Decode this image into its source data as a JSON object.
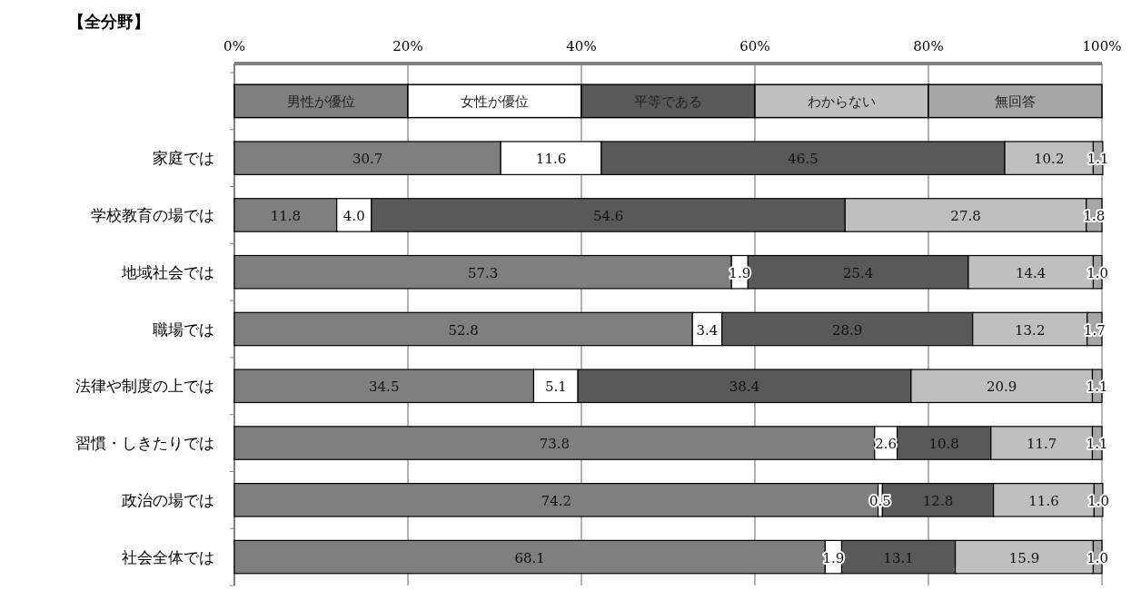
{
  "chart_data": {
    "type": "bar",
    "orientation": "horizontal",
    "stacked": true,
    "title": "【全分野】",
    "categories": [
      "家庭では",
      "学校教育の場では",
      "地域社会では",
      "職場では",
      "法律や制度の上では",
      "習慣・しきたりでは",
      "政治の場では",
      "社会全体では"
    ],
    "series": [
      {
        "name": "男性が優位",
        "color": "#7f7f7f",
        "values": [
          30.7,
          11.8,
          57.3,
          52.8,
          34.5,
          73.8,
          74.2,
          68.1
        ],
        "value_labels": [
          "30.7",
          "11.8",
          "57.3",
          "52.8",
          "34.5",
          "73.8",
          "74.2",
          "68.1"
        ]
      },
      {
        "name": "女性が優位",
        "color": "#ffffff",
        "values": [
          11.6,
          4.0,
          1.9,
          3.4,
          5.1,
          2.6,
          0.5,
          1.9
        ],
        "value_labels": [
          "11.6",
          "4.0",
          "1.9",
          "3.4",
          "5.1",
          "2.6",
          "0.5",
          "1.9"
        ]
      },
      {
        "name": "平等である",
        "color": "#595959",
        "values": [
          46.5,
          54.6,
          25.4,
          28.9,
          38.4,
          10.8,
          12.8,
          13.1
        ],
        "value_labels": [
          "46.5",
          "54.6",
          "25.4",
          "28.9",
          "38.4",
          "10.8",
          "12.8",
          "13.1"
        ]
      },
      {
        "name": "わからない",
        "color": "#bfbfbf",
        "values": [
          10.2,
          27.8,
          14.4,
          13.2,
          20.9,
          11.7,
          11.6,
          15.9
        ],
        "value_labels": [
          "10.2",
          "27.8",
          "14.4",
          "13.2",
          "20.9",
          "11.7",
          "11.6",
          "15.9"
        ]
      },
      {
        "name": "無回答",
        "color": "#a6a6a6",
        "values": [
          1.1,
          1.8,
          1.0,
          1.7,
          1.1,
          1.1,
          1.0,
          1.0
        ],
        "value_labels": [
          "1.1",
          "1.8",
          "1.0",
          "1.7",
          "1.1",
          "1.1",
          "1.0",
          "1.0"
        ]
      }
    ],
    "xlim": [
      0,
      100
    ],
    "xticks": [
      {
        "value": 0,
        "label": "0%"
      },
      {
        "value": 20,
        "label": "20%"
      },
      {
        "value": 40,
        "label": "40%"
      },
      {
        "value": 60,
        "label": "60%"
      },
      {
        "value": 80,
        "label": "80%"
      },
      {
        "value": 100,
        "label": "100%"
      }
    ],
    "grid": "x",
    "legend": "top"
  }
}
